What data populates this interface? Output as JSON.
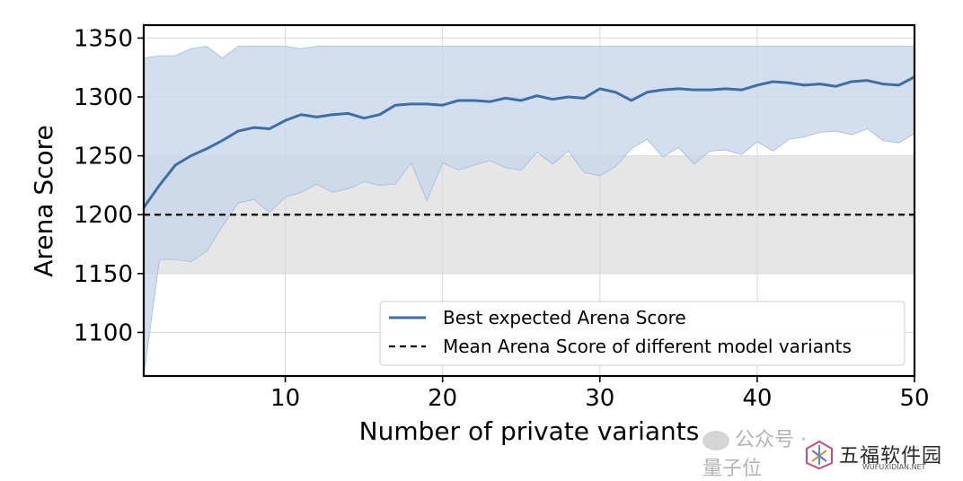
{
  "chart_data": {
    "type": "line",
    "xlabel": "Number of private variants",
    "ylabel": "Arena Score",
    "xlim": [
      1,
      50
    ],
    "ylim": [
      1063,
      1361
    ],
    "xticks": [
      10,
      20,
      30,
      40,
      50
    ],
    "yticks": [
      1100,
      1150,
      1200,
      1250,
      1300,
      1350
    ],
    "grid": true,
    "legend_position": "lower-right",
    "series": [
      {
        "name": "Best expected Arena Score",
        "color": "#3c6ea8",
        "band_color": "#c6d6ea",
        "x": [
          1,
          2,
          3,
          4,
          5,
          6,
          7,
          8,
          9,
          10,
          11,
          12,
          13,
          14,
          15,
          16,
          17,
          18,
          19,
          20,
          21,
          22,
          23,
          24,
          25,
          26,
          27,
          28,
          29,
          30,
          31,
          32,
          33,
          34,
          35,
          36,
          37,
          38,
          39,
          40,
          41,
          42,
          43,
          44,
          45,
          46,
          47,
          48,
          49,
          50
        ],
        "values": [
          1206,
          1225,
          1242,
          1250,
          1256,
          1263,
          1271,
          1274,
          1273,
          1280,
          1285,
          1283,
          1285,
          1286,
          1282,
          1285,
          1293,
          1294,
          1294,
          1293,
          1297,
          1297,
          1296,
          1299,
          1297,
          1301,
          1298,
          1300,
          1299,
          1307,
          1304,
          1297,
          1304,
          1306,
          1307,
          1306,
          1306,
          1307,
          1306,
          1310,
          1313,
          1312,
          1310,
          1311,
          1309,
          1313,
          1314,
          1311,
          1310,
          1317
        ],
        "band_upper": [
          1333,
          1335,
          1335,
          1341,
          1343,
          1333,
          1343,
          1343,
          1343,
          1343,
          1341,
          1343,
          1343,
          1343,
          1343,
          1343,
          1343,
          1343,
          1343,
          1343,
          1343,
          1343,
          1343,
          1343,
          1343,
          1343,
          1343,
          1343,
          1343,
          1343,
          1343,
          1343,
          1343,
          1343,
          1343,
          1343,
          1343,
          1343,
          1343,
          1343,
          1343,
          1343,
          1343,
          1343,
          1343,
          1343,
          1343,
          1343,
          1343,
          1343
        ],
        "band_lower": [
          1063,
          1162,
          1162,
          1160,
          1169,
          1190,
          1210,
          1213,
          1202,
          1215,
          1219,
          1226,
          1219,
          1222,
          1228,
          1225,
          1226,
          1244,
          1212,
          1244,
          1238,
          1242,
          1246,
          1240,
          1238,
          1253,
          1243,
          1254,
          1236,
          1233,
          1241,
          1256,
          1264,
          1249,
          1257,
          1243,
          1254,
          1255,
          1251,
          1262,
          1254,
          1264,
          1266,
          1270,
          1271,
          1268,
          1273,
          1263,
          1261,
          1269
        ]
      },
      {
        "name": "Mean Arena Score of different model variants",
        "color": "#000000",
        "style": "dashed",
        "value": 1200,
        "band": [
          1150,
          1250
        ],
        "band_color": "#e6e6e6"
      }
    ]
  },
  "watermarks": {
    "wechat_text": "公众号 · 量子位",
    "brand_name": "五福软件园",
    "brand_url": "WUFUXIDIAN.NET"
  }
}
